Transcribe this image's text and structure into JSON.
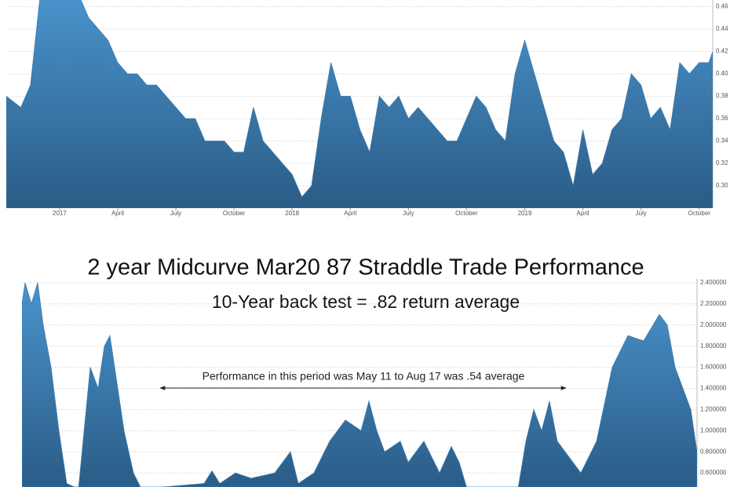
{
  "chart_data": [
    {
      "type": "area",
      "color": "#3b7bb0",
      "grid": true,
      "y_axis_side": "right",
      "x": [
        -2.75,
        -2,
        -1.5,
        -1,
        0,
        1,
        1.5,
        2,
        2.5,
        3,
        3.5,
        4,
        4.5,
        5,
        5.5,
        6,
        6.5,
        7,
        7.5,
        8,
        8.5,
        9,
        9.5,
        10,
        10.5,
        11,
        11.5,
        12,
        12.5,
        13,
        13.5,
        14,
        14.5,
        15,
        15.5,
        16,
        16.5,
        17,
        17.5,
        18,
        18.5,
        19,
        19.5,
        20,
        20.5,
        21,
        21.5,
        22,
        22.5,
        23,
        23.5,
        24,
        24.5,
        25,
        25.5,
        26,
        26.5,
        27,
        27.5,
        28,
        28.5,
        29,
        29.5,
        30,
        30.5,
        31,
        31.5,
        32,
        32.5,
        33,
        33.5,
        33.7
      ],
      "values": [
        0.38,
        0.37,
        0.39,
        0.47,
        0.47,
        0.47,
        0.45,
        0.44,
        0.43,
        0.41,
        0.4,
        0.4,
        0.39,
        0.39,
        0.38,
        0.37,
        0.36,
        0.36,
        0.34,
        0.34,
        0.34,
        0.33,
        0.33,
        0.37,
        0.34,
        0.33,
        0.32,
        0.31,
        0.29,
        0.3,
        0.36,
        0.41,
        0.38,
        0.38,
        0.35,
        0.33,
        0.38,
        0.37,
        0.38,
        0.36,
        0.37,
        0.36,
        0.35,
        0.34,
        0.34,
        0.36,
        0.38,
        0.37,
        0.35,
        0.34,
        0.4,
        0.43,
        0.4,
        0.37,
        0.34,
        0.33,
        0.3,
        0.35,
        0.31,
        0.32,
        0.35,
        0.36,
        0.4,
        0.39,
        0.36,
        0.37,
        0.35,
        0.41,
        0.4,
        0.41,
        0.41,
        0.42
      ],
      "xlim": [
        -2.75,
        33.7
      ],
      "xticks": [
        {
          "value": 0,
          "label": "2017"
        },
        {
          "value": 3,
          "label": "April"
        },
        {
          "value": 6,
          "label": "July"
        },
        {
          "value": 9,
          "label": "October"
        },
        {
          "value": 12,
          "label": "2018"
        },
        {
          "value": 15,
          "label": "April"
        },
        {
          "value": 18,
          "label": "July"
        },
        {
          "value": 21,
          "label": "October"
        },
        {
          "value": 24,
          "label": "2019"
        },
        {
          "value": 27,
          "label": "April"
        },
        {
          "value": 30,
          "label": "July"
        },
        {
          "value": 33,
          "label": "October"
        }
      ],
      "ylim": [
        0.28,
        0.466
      ],
      "yticks": [
        {
          "value": 0.3,
          "label": "0.30"
        },
        0.32,
        0.34,
        0.36,
        0.38,
        {
          "value": 0.4,
          "label": "0.40"
        },
        0.42,
        0.44,
        0.46
      ]
    },
    {
      "type": "area",
      "color": "#3b7bb0",
      "grid": true,
      "y_axis_side": "right",
      "title": "2 year Midcurve Mar20 87 Straddle Trade Performance",
      "subtitle": "10-Year back test = .82 return average",
      "annotation": "Performance in this period was May 11 to Aug 17 was .54 average",
      "x": [
        28,
        32,
        40,
        48,
        55,
        65,
        75,
        85,
        100,
        115,
        125,
        133,
        140,
        148,
        158,
        170,
        180,
        260,
        270,
        280,
        300,
        320,
        350,
        370,
        380,
        400,
        420,
        440,
        460,
        470,
        480,
        490,
        510,
        520,
        540,
        560,
        575,
        585,
        595,
        660,
        670,
        680,
        690,
        700,
        710,
        720,
        740,
        760,
        780,
        800,
        820,
        840,
        850,
        860,
        870,
        880,
        888
      ],
      "values": [
        2.2,
        2.4,
        2.2,
        2.4,
        2.0,
        1.6,
        1.0,
        0.5,
        0.45,
        1.6,
        1.4,
        1.8,
        1.9,
        1.5,
        1.0,
        0.6,
        0.45,
        0.5,
        0.62,
        0.5,
        0.6,
        0.55,
        0.6,
        0.8,
        0.5,
        0.6,
        0.9,
        1.1,
        1.0,
        1.28,
        1.0,
        0.8,
        0.9,
        0.7,
        0.9,
        0.6,
        0.85,
        0.7,
        0.45,
        0.45,
        0.9,
        1.2,
        1.0,
        1.28,
        0.9,
        0.8,
        0.6,
        0.9,
        1.6,
        1.9,
        1.85,
        2.1,
        2.0,
        1.6,
        1.4,
        1.2,
        0.8
      ],
      "xlim": [
        28,
        888
      ],
      "ylim": [
        0.467,
        2.437
      ],
      "yticks": [
        {
          "value": 0.6,
          "label": "0.600000"
        },
        {
          "value": 0.8,
          "label": "0.800000"
        },
        {
          "value": 1,
          "label": "1.000000"
        },
        {
          "value": 1.2,
          "label": "1.200000"
        },
        {
          "value": 1.4,
          "label": "1.400000"
        },
        {
          "value": 1.6,
          "label": "1.600000"
        },
        {
          "value": 1.8,
          "label": "1.800000"
        },
        {
          "value": 2,
          "label": "2.000000"
        },
        {
          "value": 2.2,
          "label": "2.200000"
        },
        {
          "value": 2.4,
          "label": "2.400000"
        }
      ]
    }
  ]
}
